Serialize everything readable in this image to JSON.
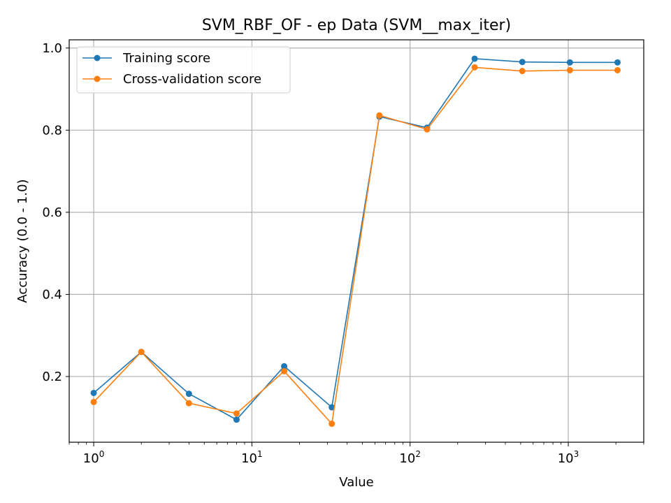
{
  "chart_data": {
    "type": "line",
    "title": "SVM_RBF_OF - ep Data (SVM__max_iter)",
    "xlabel": "Value",
    "ylabel": "Accuracy (0.0 - 1.0)",
    "xscale": "log",
    "xlim": [
      0.7,
      3000
    ],
    "ylim": [
      0.04,
      1.02
    ],
    "grid": true,
    "legend_position": "top-left",
    "x": [
      1,
      2,
      4,
      8,
      16,
      32,
      64,
      128,
      256,
      512,
      1024,
      2048
    ],
    "series": [
      {
        "name": "Training score",
        "color": "#1f77b4",
        "values": [
          0.16,
          0.26,
          0.158,
          0.095,
          0.225,
          0.125,
          0.833,
          0.806,
          0.974,
          0.966,
          0.965,
          0.965
        ]
      },
      {
        "name": "Cross-validation score",
        "color": "#ff7f0e",
        "values": [
          0.138,
          0.26,
          0.135,
          0.11,
          0.213,
          0.085,
          0.836,
          0.802,
          0.953,
          0.944,
          0.946,
          0.946
        ]
      }
    ],
    "y_ticks": [
      "0.2",
      "0.4",
      "0.6",
      "0.8",
      "1.0"
    ],
    "x_ticks": [
      {
        "base": "10",
        "exp": "0",
        "value": 1
      },
      {
        "base": "10",
        "exp": "1",
        "value": 10
      },
      {
        "base": "10",
        "exp": "2",
        "value": 100
      },
      {
        "base": "10",
        "exp": "3",
        "value": 1000
      }
    ]
  }
}
